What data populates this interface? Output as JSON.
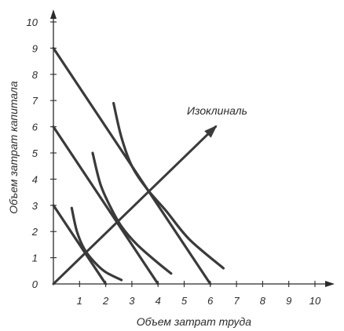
{
  "chart_data": {
    "type": "line",
    "xlabel": "Объем затрат труда",
    "ylabel": "Объем затрат капитала",
    "xlim": [
      0,
      10
    ],
    "ylim": [
      0,
      10
    ],
    "x_ticks": [
      1,
      2,
      3,
      4,
      5,
      6,
      7,
      8,
      9,
      10
    ],
    "y_ticks": [
      0,
      1,
      2,
      3,
      4,
      5,
      6,
      7,
      8,
      9,
      10
    ],
    "grid": false,
    "isocosts": [
      {
        "x": [
          0,
          2
        ],
        "y": [
          3,
          0
        ]
      },
      {
        "x": [
          0,
          4
        ],
        "y": [
          6,
          0
        ]
      },
      {
        "x": [
          0,
          6
        ],
        "y": [
          9,
          0
        ]
      }
    ],
    "isoquants": [
      {
        "x": [
          0.7,
          0.9,
          1.2,
          1.6,
          2.0,
          2.6
        ],
        "y": [
          2.9,
          2.0,
          1.3,
          0.8,
          0.45,
          0.15
        ]
      },
      {
        "x": [
          1.5,
          1.8,
          2.2,
          2.6,
          3.2,
          4.0,
          4.5
        ],
        "y": [
          5.0,
          3.8,
          2.9,
          2.2,
          1.5,
          0.8,
          0.4
        ]
      },
      {
        "x": [
          2.3,
          2.6,
          3.0,
          3.6,
          4.3,
          5.2,
          6.5
        ],
        "y": [
          6.9,
          5.6,
          4.5,
          3.6,
          2.8,
          1.7,
          0.6
        ]
      }
    ],
    "isocline": {
      "x": [
        0,
        6.2
      ],
      "y": [
        0,
        6.0
      ],
      "label": "Изоклиналь"
    },
    "annotations": [
      {
        "text": "Изоклиналь",
        "x": 5.4,
        "y": 6.5
      }
    ]
  }
}
